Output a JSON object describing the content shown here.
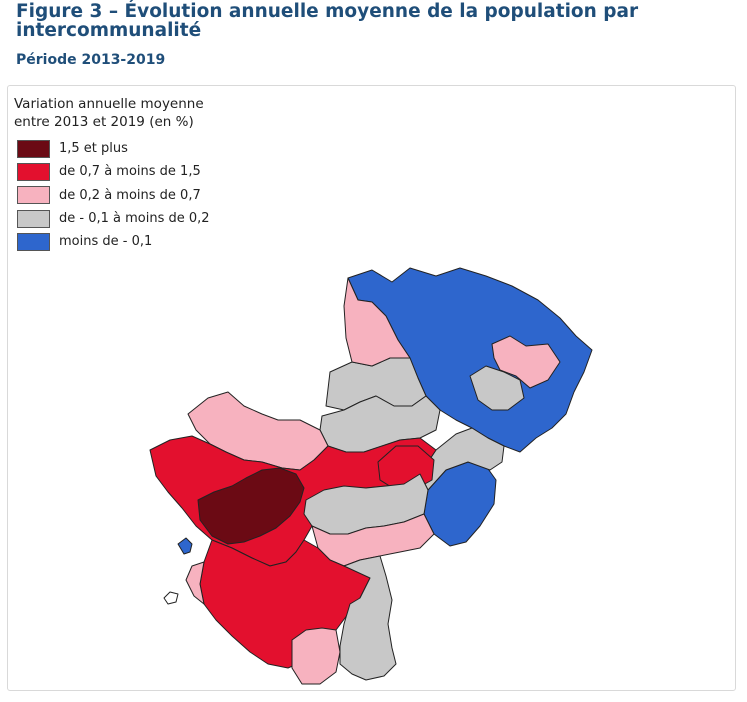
{
  "figure": {
    "title": "Figure 3 – Évolution annuelle moyenne de la population par intercommunalité",
    "subtitle": "Période 2013-2019"
  },
  "legend": {
    "title_line1": "Variation annuelle moyenne",
    "title_line2": "entre 2013 et 2019 (en %)",
    "items": [
      {
        "label": "1,5 et plus",
        "color": "#6b0a14"
      },
      {
        "label": "de 0,7 à moins de 1,5",
        "color": "#e3102e"
      },
      {
        "label": "de 0,2 à moins de 0,7",
        "color": "#f7b2bf"
      },
      {
        "label": "de - 0,1 à moins de 0,2",
        "color": "#c8c8c8"
      },
      {
        "label": "moins de - 0,1",
        "color": "#2e66cd"
      }
    ]
  }
}
